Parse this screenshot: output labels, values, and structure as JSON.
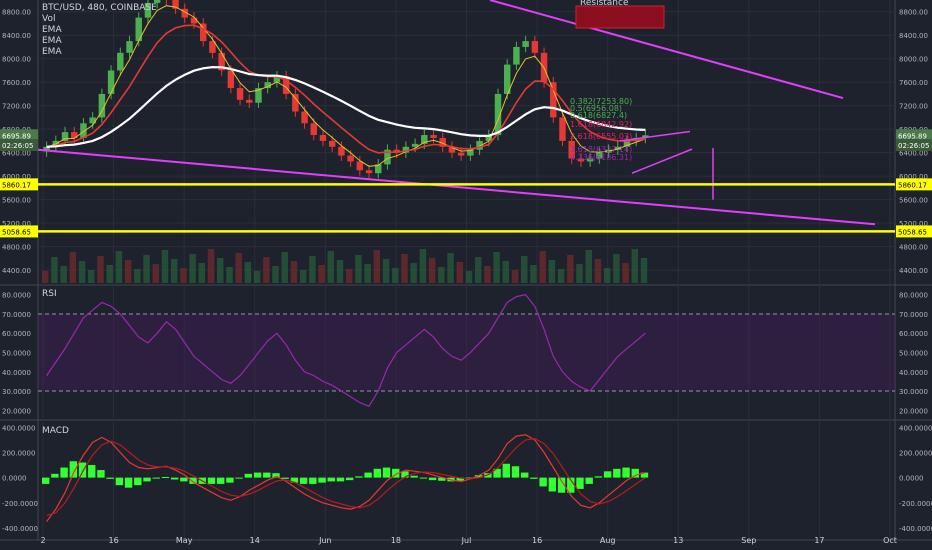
{
  "header": {
    "symbol_line": "BTC/USD, 480, COINBASE",
    "indicators": [
      "Vol",
      "EMA",
      "EMA",
      "EMA"
    ]
  },
  "annotations": {
    "resistance_label": "Resistance"
  },
  "colors": {
    "background": "#1e222d",
    "grid": "#2a2e39",
    "up_candle": "#4caf50",
    "down_candle": "#e53935",
    "ema_fast": "#e6c229",
    "ema_mid": "#e53935",
    "ema_slow": "#ffffff",
    "trendline": "#e040fb",
    "support": "#ffff00",
    "rsi_line": "#9c27b0",
    "macd_hist": "#33ff33"
  },
  "chart_data": [
    {
      "type": "candlestick",
      "name": "price",
      "y_ticks_left": [
        "8800.00",
        "8400.00",
        "8000.00",
        "7600.00",
        "7200.00",
        "6800.00",
        "6400.00",
        "6000.00",
        "5600.00",
        "5200.00",
        "4800.00",
        "4400.00"
      ],
      "y_ticks_right": [
        "8800.00",
        "8400.00",
        "8000.00",
        "7600.00",
        "7200.00",
        "6800.00",
        "6400.00",
        "6000.00",
        "5600.00",
        "5200.00",
        "4800.00",
        "4400.00"
      ],
      "ylim": [
        4180,
        9000
      ],
      "x_ticks": [
        "2",
        "16",
        "May",
        "14",
        "Jun",
        "18",
        "Jul",
        "16",
        "Aug",
        "13",
        "Sep",
        "17",
        "Oct"
      ],
      "price_badges_left": [
        "6695.89",
        "02:26:05",
        "5860.17",
        "5058.65"
      ],
      "price_badges_right": [
        "6695.89",
        "02:26:05",
        "5860.17",
        "5058.65"
      ],
      "support_levels": [
        5860.17,
        5058.65
      ],
      "fib_labels": [
        "0.382(7253.80)",
        "0.5(6956.08)",
        "0.618(6827.4)",
        "1.618(6842.92)",
        "2.618(6555.03)",
        "3.618(6327.14)",
        "4.236(6186.31)"
      ],
      "closes": [
        6500,
        6600,
        6750,
        6650,
        6900,
        7000,
        7400,
        7800,
        8100,
        8300,
        8700,
        8950,
        9100,
        9000,
        8850,
        8700,
        8600,
        8300,
        8100,
        7800,
        7500,
        7300,
        7250,
        7500,
        7600,
        7700,
        7400,
        7100,
        6900,
        6700,
        6600,
        6500,
        6350,
        6250,
        6100,
        6050,
        6200,
        6450,
        6400,
        6500,
        6550,
        6700,
        6650,
        6500,
        6400,
        6350,
        6450,
        6600,
        6700,
        7400,
        7900,
        8200,
        8300,
        8100,
        7600,
        7000,
        6600,
        6300,
        6250,
        6300,
        6400,
        6450,
        6500,
        6600,
        6650,
        6695
      ]
    },
    {
      "type": "line",
      "name": "RSI",
      "y_ticks_left": [
        "80.0000",
        "70.0000",
        "60.0000",
        "50.0000",
        "40.0000",
        "30.0000",
        "20.0000"
      ],
      "y_ticks_right": [
        "80.0000",
        "70.0000",
        "60.0000",
        "50.0000",
        "40.0000",
        "30.0000",
        "20.0000"
      ],
      "ylim": [
        16,
        84
      ],
      "band": [
        30,
        70
      ],
      "values": [
        38,
        45,
        52,
        60,
        68,
        72,
        76,
        74,
        70,
        64,
        58,
        55,
        60,
        66,
        62,
        55,
        48,
        44,
        40,
        36,
        34,
        38,
        44,
        50,
        56,
        60,
        54,
        46,
        40,
        38,
        35,
        33,
        30,
        27,
        24,
        22,
        30,
        42,
        50,
        54,
        58,
        62,
        58,
        52,
        48,
        46,
        50,
        55,
        60,
        68,
        76,
        79,
        80,
        74,
        62,
        48,
        40,
        35,
        32,
        30,
        36,
        42,
        48,
        52,
        56,
        60
      ]
    },
    {
      "type": "line",
      "name": "MACD",
      "y_ticks_left": [
        "400.0000",
        "200.0000",
        "0.0000",
        "-200.0000",
        "-400.0000"
      ],
      "y_ticks_right": [
        "400.0000",
        "200.0000",
        "0.0000",
        "-200.0000",
        "-400.0000"
      ],
      "ylim": [
        -480,
        450
      ],
      "macd": [
        -350,
        -250,
        -120,
        50,
        180,
        280,
        320,
        280,
        200,
        120,
        80,
        70,
        80,
        90,
        60,
        20,
        -40,
        -80,
        -120,
        -160,
        -180,
        -150,
        -100,
        -60,
        -20,
        10,
        -30,
        -80,
        -130,
        -170,
        -200,
        -220,
        -240,
        -250,
        -230,
        -180,
        -100,
        -20,
        30,
        60,
        50,
        40,
        20,
        0,
        -20,
        -30,
        -10,
        20,
        60,
        150,
        270,
        330,
        340,
        300,
        200,
        80,
        -40,
        -150,
        -220,
        -240,
        -200,
        -140,
        -80,
        -20,
        20,
        40
      ],
      "signal": [
        -300,
        -280,
        -200,
        -80,
        60,
        180,
        260,
        290,
        260,
        200,
        140,
        100,
        85,
        85,
        75,
        50,
        10,
        -30,
        -70,
        -110,
        -140,
        -150,
        -130,
        -100,
        -60,
        -25,
        -20,
        -40,
        -80,
        -120,
        -160,
        -190,
        -210,
        -230,
        -240,
        -220,
        -170,
        -100,
        -40,
        10,
        35,
        45,
        40,
        25,
        10,
        -5,
        -10,
        0,
        25,
        80,
        160,
        240,
        300,
        310,
        270,
        190,
        80,
        -30,
        -130,
        -190,
        -210,
        -190,
        -150,
        -100,
        -50,
        0
      ]
    }
  ]
}
